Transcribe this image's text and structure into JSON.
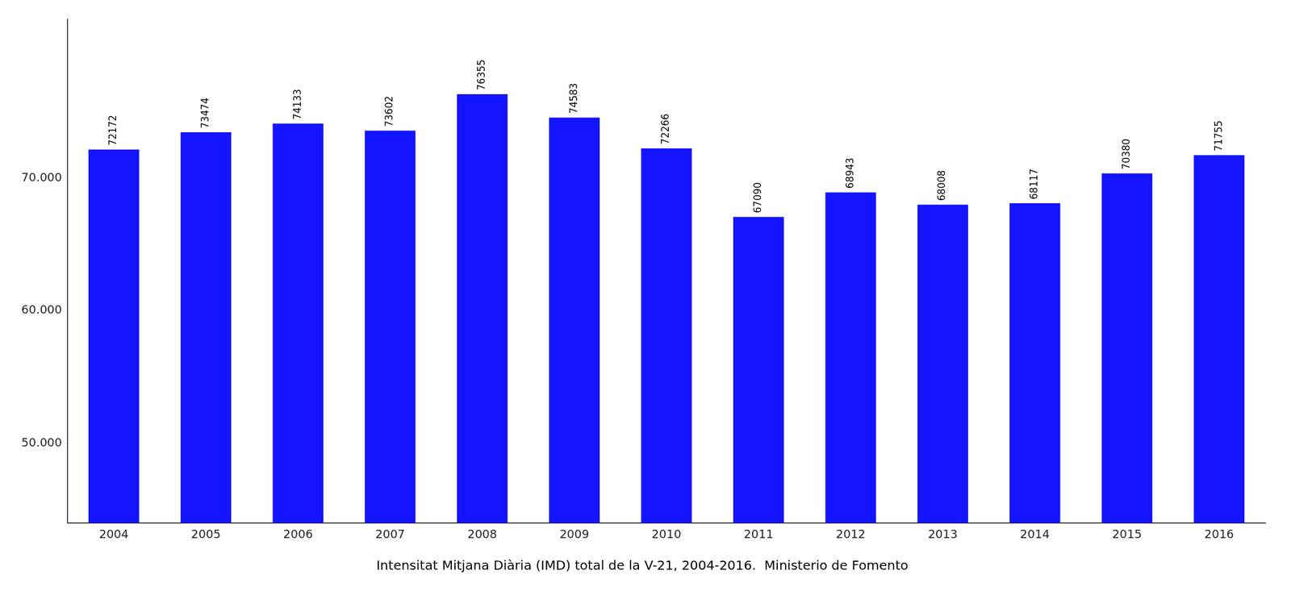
{
  "chart_data": {
    "type": "bar",
    "title": "Intensitat Mitjana Diària (IMD) total de la V-21, 2004-2016.  Ministerio de Fomento",
    "categories": [
      "2004",
      "2005",
      "2006",
      "2007",
      "2008",
      "2009",
      "2010",
      "2011",
      "2012",
      "2013",
      "2014",
      "2015",
      "2016"
    ],
    "values": [
      72172,
      73474,
      74133,
      73602,
      76355,
      74583,
      72266,
      67090,
      68943,
      68008,
      68117,
      70380,
      71755
    ],
    "color": "#1414FF",
    "ylim": [
      44000,
      82000
    ],
    "yticks": [
      {
        "value": 50000,
        "label": "50.000"
      },
      {
        "value": 60000,
        "label": "60.000"
      },
      {
        "value": 70000,
        "label": "70.000"
      }
    ],
    "grid": false,
    "data_labels": true
  }
}
